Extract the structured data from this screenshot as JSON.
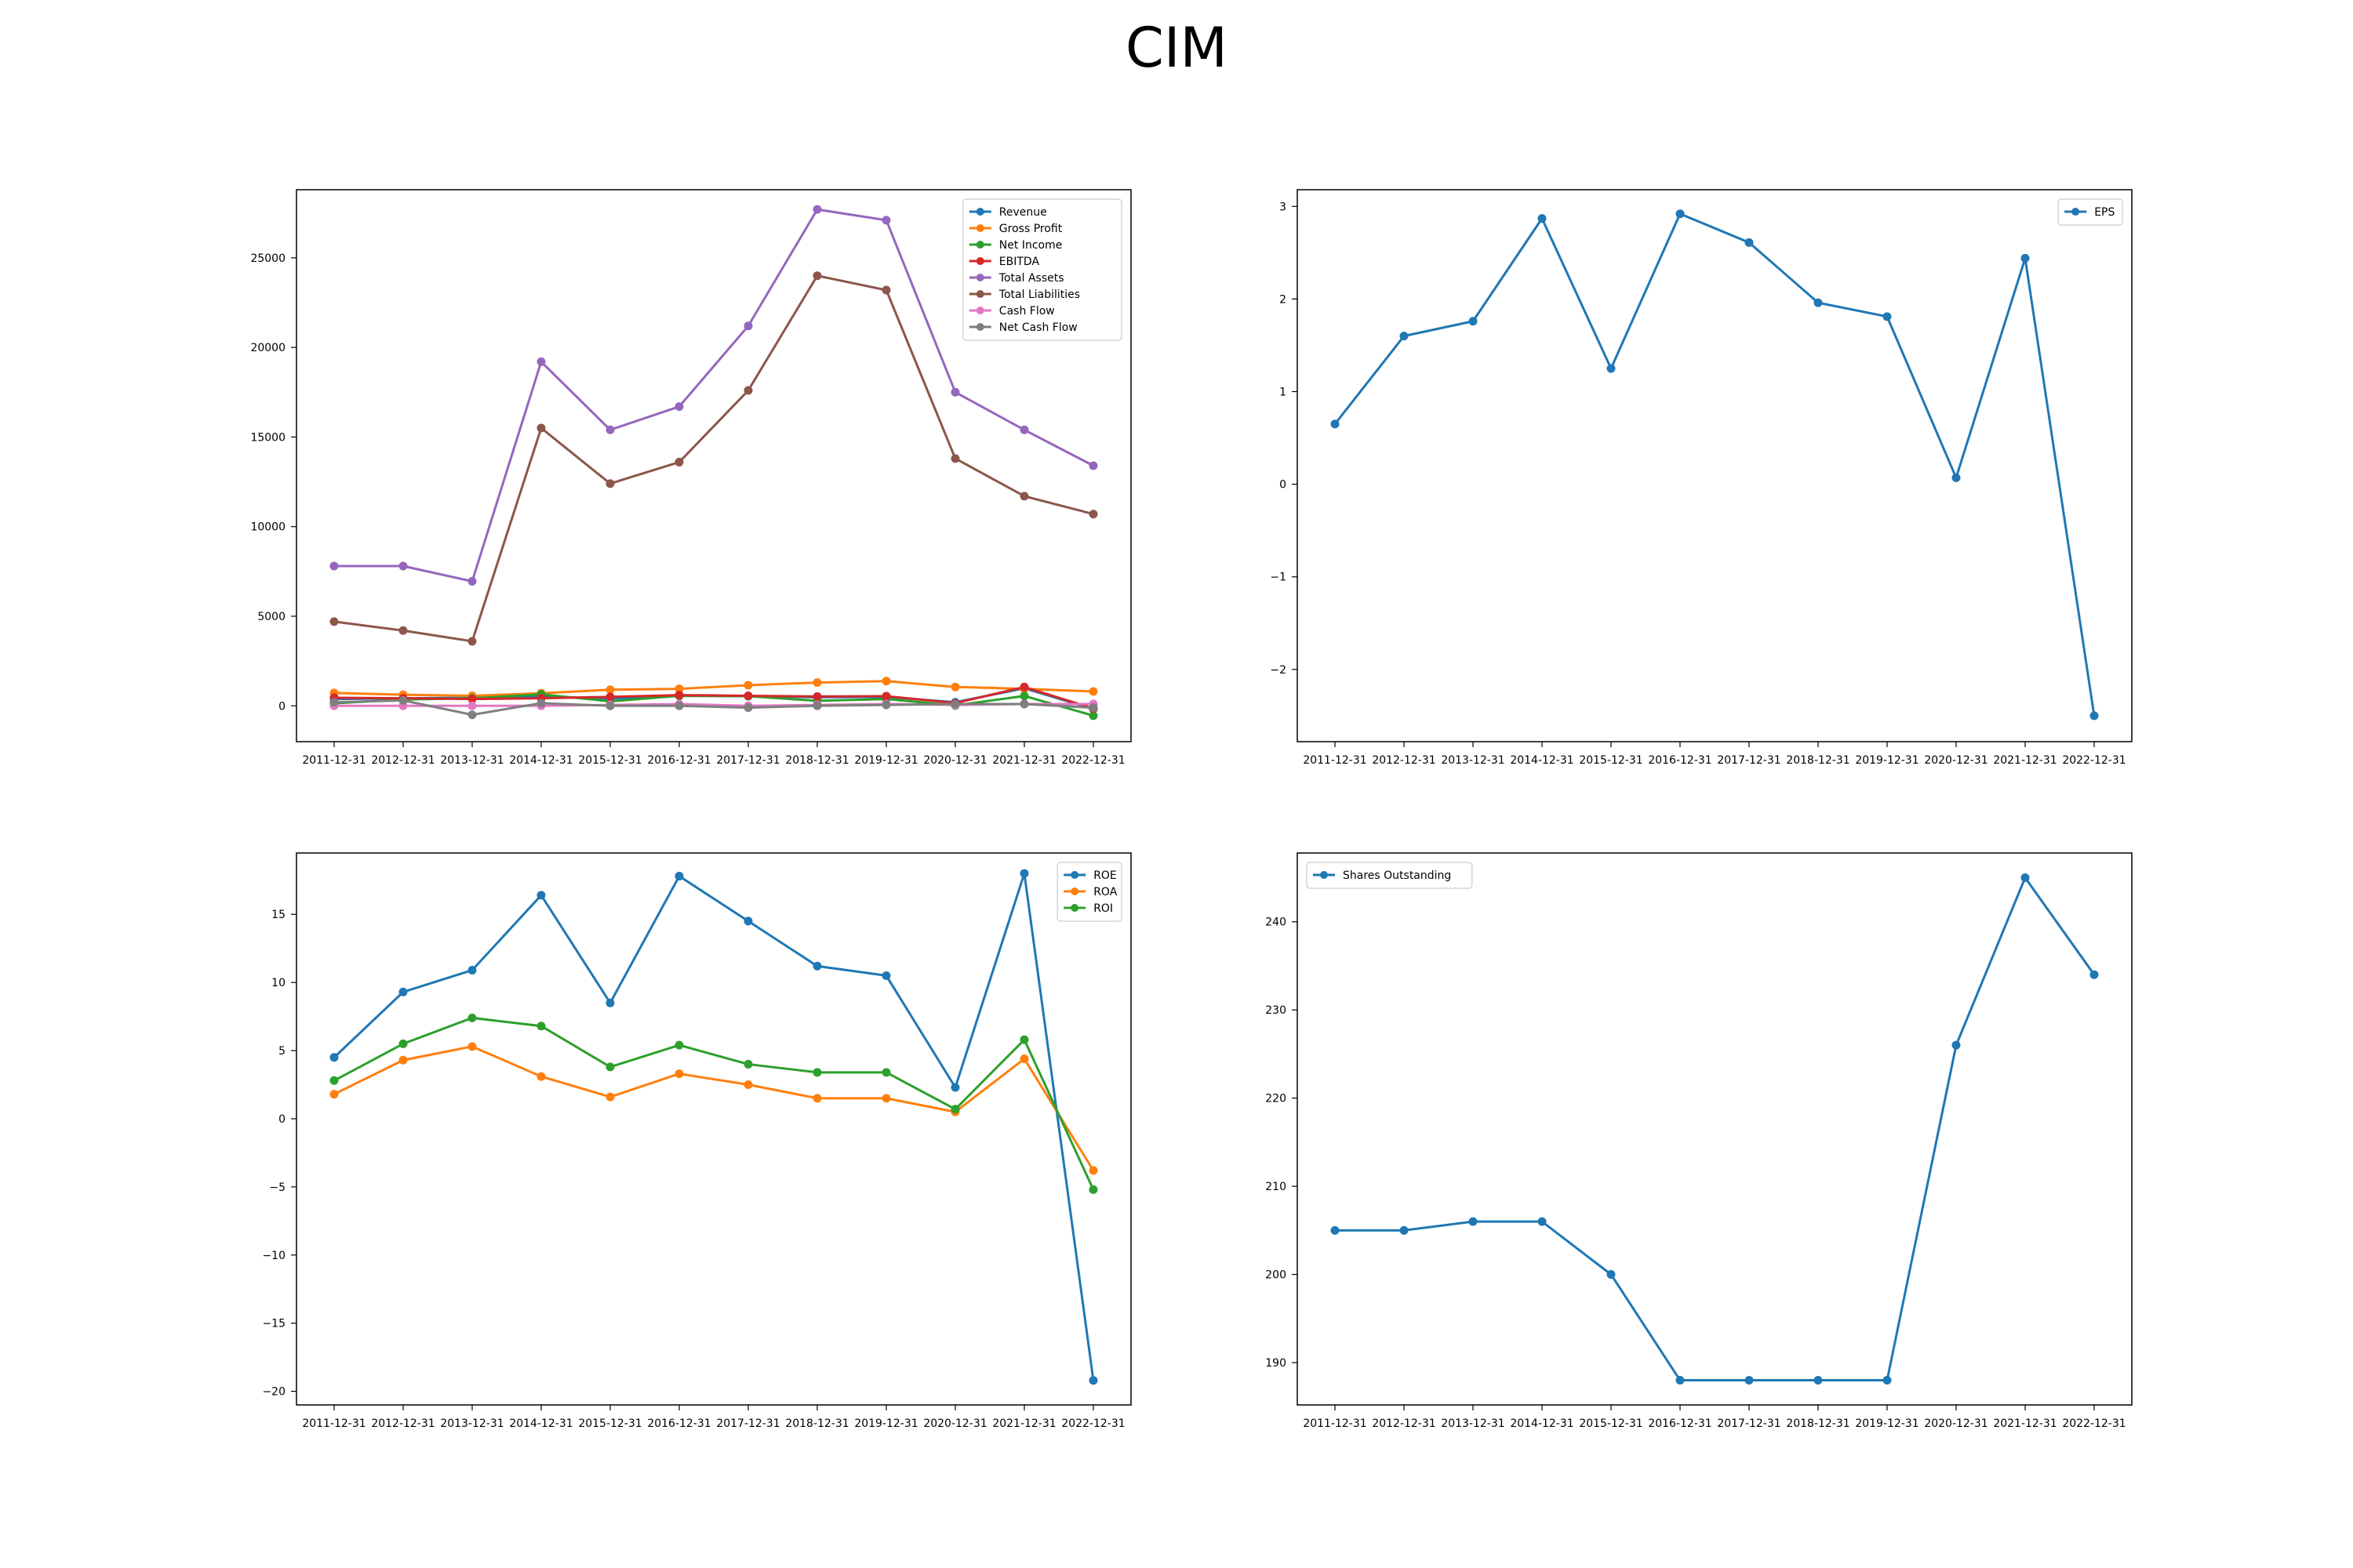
{
  "title": "CIM",
  "chart_data": [
    {
      "type": "line",
      "x": [
        "2011-12-31",
        "2012-12-31",
        "2013-12-31",
        "2014-12-31",
        "2015-12-31",
        "2016-12-31",
        "2017-12-31",
        "2018-12-31",
        "2019-12-31",
        "2020-12-31",
        "2021-12-31",
        "2022-12-31"
      ],
      "ylim": [
        -2000,
        28800
      ],
      "yticks": [
        0,
        5000,
        10000,
        15000,
        20000,
        25000
      ],
      "legend_position": "top-right",
      "grid": false,
      "series": [
        {
          "name": "Revenue",
          "color": "#1f77b4",
          "values": [
            380,
            420,
            450,
            520,
            400,
            560,
            540,
            480,
            500,
            200,
            980,
            -180
          ]
        },
        {
          "name": "Gross Profit",
          "color": "#ff7f0e",
          "values": [
            720,
            620,
            560,
            700,
            900,
            950,
            1150,
            1300,
            1380,
            1050,
            950,
            800
          ]
        },
        {
          "name": "Net Income",
          "color": "#2ca02c",
          "values": [
            140,
            350,
            420,
            640,
            250,
            560,
            540,
            280,
            380,
            20,
            550,
            -550
          ]
        },
        {
          "name": "EBITDA",
          "color": "#d62728",
          "values": [
            450,
            420,
            380,
            420,
            500,
            600,
            560,
            520,
            540,
            150,
            1050,
            -150
          ]
        },
        {
          "name": "Total Assets",
          "color": "#9467bd",
          "values": [
            7800,
            7800,
            6950,
            19200,
            15400,
            16700,
            21200,
            27700,
            27100,
            17500,
            15400,
            13400
          ]
        },
        {
          "name": "Total Liabilities",
          "color": "#8c564b",
          "values": [
            4700,
            4200,
            3600,
            15500,
            12400,
            13600,
            17600,
            24000,
            23200,
            13800,
            11700,
            10700
          ]
        },
        {
          "name": "Cash Flow",
          "color": "#e377c2",
          "values": [
            0,
            0,
            0,
            0,
            50,
            100,
            0,
            50,
            100,
            50,
            100,
            100
          ]
        },
        {
          "name": "Net Cash Flow",
          "color": "#7f7f7f",
          "values": [
            200,
            300,
            -500,
            150,
            0,
            0,
            -100,
            0,
            50,
            100,
            100,
            -100
          ]
        }
      ]
    },
    {
      "type": "line",
      "x": [
        "2011-12-31",
        "2012-12-31",
        "2013-12-31",
        "2014-12-31",
        "2015-12-31",
        "2016-12-31",
        "2017-12-31",
        "2018-12-31",
        "2019-12-31",
        "2020-12-31",
        "2021-12-31",
        "2022-12-31"
      ],
      "ylim": [
        -2.78,
        3.18
      ],
      "yticks": [
        -2,
        -1,
        0,
        1,
        2,
        3
      ],
      "legend_position": "top-right",
      "grid": false,
      "series": [
        {
          "name": "EPS",
          "color": "#1f77b4",
          "values": [
            0.65,
            1.6,
            1.76,
            2.87,
            1.25,
            2.92,
            2.61,
            1.96,
            1.81,
            0.07,
            2.44,
            -2.5
          ]
        }
      ]
    },
    {
      "type": "line",
      "x": [
        "2011-12-31",
        "2012-12-31",
        "2013-12-31",
        "2014-12-31",
        "2015-12-31",
        "2016-12-31",
        "2017-12-31",
        "2018-12-31",
        "2019-12-31",
        "2020-12-31",
        "2021-12-31",
        "2022-12-31"
      ],
      "ylim": [
        -21,
        19.5
      ],
      "yticks": [
        -20,
        -15,
        -10,
        -5,
        0,
        5,
        10,
        15
      ],
      "legend_position": "top-right",
      "grid": false,
      "series": [
        {
          "name": "ROE",
          "color": "#1f77b4",
          "values": [
            4.5,
            9.3,
            10.9,
            16.4,
            8.5,
            17.8,
            14.5,
            11.2,
            10.5,
            2.3,
            18.0,
            -19.2
          ]
        },
        {
          "name": "ROA",
          "color": "#ff7f0e",
          "values": [
            1.8,
            4.3,
            5.3,
            3.1,
            1.6,
            3.3,
            2.5,
            1.5,
            1.5,
            0.5,
            4.4,
            -3.8
          ]
        },
        {
          "name": "ROI",
          "color": "#2ca02c",
          "values": [
            2.8,
            5.5,
            7.4,
            6.8,
            3.8,
            5.4,
            4.0,
            3.4,
            3.4,
            0.7,
            5.8,
            -5.2
          ]
        }
      ]
    },
    {
      "type": "line",
      "x": [
        "2011-12-31",
        "2012-12-31",
        "2013-12-31",
        "2014-12-31",
        "2015-12-31",
        "2016-12-31",
        "2017-12-31",
        "2018-12-31",
        "2019-12-31",
        "2020-12-31",
        "2021-12-31",
        "2022-12-31"
      ],
      "ylim": [
        185.2,
        247.8
      ],
      "yticks": [
        190,
        200,
        210,
        220,
        230,
        240
      ],
      "legend_position": "top-left",
      "grid": false,
      "series": [
        {
          "name": "Shares Outstanding",
          "color": "#1f77b4",
          "values": [
            205,
            205,
            206,
            206,
            200,
            188,
            188,
            188,
            188,
            226,
            245,
            234
          ]
        }
      ]
    }
  ]
}
